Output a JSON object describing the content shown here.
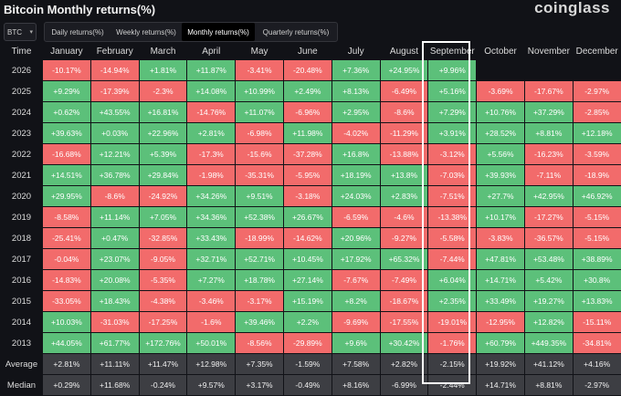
{
  "header": {
    "title": "Bitcoin Monthly returns(%)",
    "brand": "coinglass"
  },
  "toolbar": {
    "asset": {
      "value": "BTC"
    },
    "tabs": [
      {
        "label": "Daily returns(%)",
        "active": false
      },
      {
        "label": "Weekly returns(%)",
        "active": false
      },
      {
        "label": "Monthly returns(%)",
        "active": true
      },
      {
        "label": "Quarterly returns(%)",
        "active": false
      }
    ]
  },
  "table": {
    "columns": [
      "Time",
      "January",
      "February",
      "March",
      "April",
      "May",
      "June",
      "July",
      "August",
      "September",
      "October",
      "November",
      "December"
    ],
    "highlighted_column": "September",
    "colors": {
      "positive": "#5cc07a",
      "negative": "#f26b6b",
      "summary": "#3d3e43"
    },
    "rows": [
      {
        "year": "2026",
        "values": [
          "-10.17%",
          "-14.94%",
          "+1.81%",
          "+11.87%",
          "-3.41%",
          "-20.48%",
          "+7.36%",
          "+24.95%",
          "+9.96%",
          "",
          "",
          ""
        ]
      },
      {
        "year": "2025",
        "values": [
          "+9.29%",
          "-17.39%",
          "-2.3%",
          "+14.08%",
          "+10.99%",
          "+2.49%",
          "+8.13%",
          "-6.49%",
          "+5.16%",
          "-3.69%",
          "-17.67%",
          "-2.97%"
        ]
      },
      {
        "year": "2024",
        "values": [
          "+0.62%",
          "+43.55%",
          "+16.81%",
          "-14.76%",
          "+11.07%",
          "-6.96%",
          "+2.95%",
          "-8.6%",
          "+7.29%",
          "+10.76%",
          "+37.29%",
          "-2.85%"
        ]
      },
      {
        "year": "2023",
        "values": [
          "+39.63%",
          "+0.03%",
          "+22.96%",
          "+2.81%",
          "-6.98%",
          "+11.98%",
          "-4.02%",
          "-11.29%",
          "+3.91%",
          "+28.52%",
          "+8.81%",
          "+12.18%"
        ]
      },
      {
        "year": "2022",
        "values": [
          "-16.68%",
          "+12.21%",
          "+5.39%",
          "-17.3%",
          "-15.6%",
          "-37.28%",
          "+16.8%",
          "-13.88%",
          "-3.12%",
          "+5.56%",
          "-16.23%",
          "-3.59%"
        ]
      },
      {
        "year": "2021",
        "values": [
          "+14.51%",
          "+36.78%",
          "+29.84%",
          "-1.98%",
          "-35.31%",
          "-5.95%",
          "+18.19%",
          "+13.8%",
          "-7.03%",
          "+39.93%",
          "-7.11%",
          "-18.9%"
        ]
      },
      {
        "year": "2020",
        "values": [
          "+29.95%",
          "-8.6%",
          "-24.92%",
          "+34.26%",
          "+9.51%",
          "-3.18%",
          "+24.03%",
          "+2.83%",
          "-7.51%",
          "+27.7%",
          "+42.95%",
          "+46.92%"
        ]
      },
      {
        "year": "2019",
        "values": [
          "-8.58%",
          "+11.14%",
          "+7.05%",
          "+34.36%",
          "+52.38%",
          "+26.67%",
          "-6.59%",
          "-4.6%",
          "-13.38%",
          "+10.17%",
          "-17.27%",
          "-5.15%"
        ]
      },
      {
        "year": "2018",
        "values": [
          "-25.41%",
          "+0.47%",
          "-32.85%",
          "+33.43%",
          "-18.99%",
          "-14.62%",
          "+20.96%",
          "-9.27%",
          "-5.58%",
          "-3.83%",
          "-36.57%",
          "-5.15%"
        ]
      },
      {
        "year": "2017",
        "values": [
          "-0.04%",
          "+23.07%",
          "-9.05%",
          "+32.71%",
          "+52.71%",
          "+10.45%",
          "+17.92%",
          "+65.32%",
          "-7.44%",
          "+47.81%",
          "+53.48%",
          "+38.89%"
        ]
      },
      {
        "year": "2016",
        "values": [
          "-14.83%",
          "+20.08%",
          "-5.35%",
          "+7.27%",
          "+18.78%",
          "+27.14%",
          "-7.67%",
          "-7.49%",
          "+6.04%",
          "+14.71%",
          "+5.42%",
          "+30.8%"
        ]
      },
      {
        "year": "2015",
        "values": [
          "-33.05%",
          "+18.43%",
          "-4.38%",
          "-3.46%",
          "-3.17%",
          "+15.19%",
          "+8.2%",
          "-18.67%",
          "+2.35%",
          "+33.49%",
          "+19.27%",
          "+13.83%"
        ]
      },
      {
        "year": "2014",
        "values": [
          "+10.03%",
          "-31.03%",
          "-17.25%",
          "-1.6%",
          "+39.46%",
          "+2.2%",
          "-9.69%",
          "-17.55%",
          "-19.01%",
          "-12.95%",
          "+12.82%",
          "-15.11%"
        ]
      },
      {
        "year": "2013",
        "values": [
          "+44.05%",
          "+61.77%",
          "+172.76%",
          "+50.01%",
          "-8.56%",
          "-29.89%",
          "+9.6%",
          "+30.42%",
          "-1.76%",
          "+60.79%",
          "+449.35%",
          "-34.81%"
        ]
      }
    ],
    "summary": [
      {
        "label": "Average",
        "values": [
          "+2.81%",
          "+11.11%",
          "+11.47%",
          "+12.98%",
          "+7.35%",
          "-1.59%",
          "+7.58%",
          "+2.82%",
          "-2.15%",
          "+19.92%",
          "+41.12%",
          "+4.16%"
        ]
      },
      {
        "label": "Median",
        "values": [
          "+0.29%",
          "+11.68%",
          "-0.24%",
          "+9.57%",
          "+3.17%",
          "-0.49%",
          "+8.16%",
          "-6.99%",
          "-2.44%",
          "+14.71%",
          "+8.81%",
          "-2.97%"
        ]
      }
    ]
  }
}
